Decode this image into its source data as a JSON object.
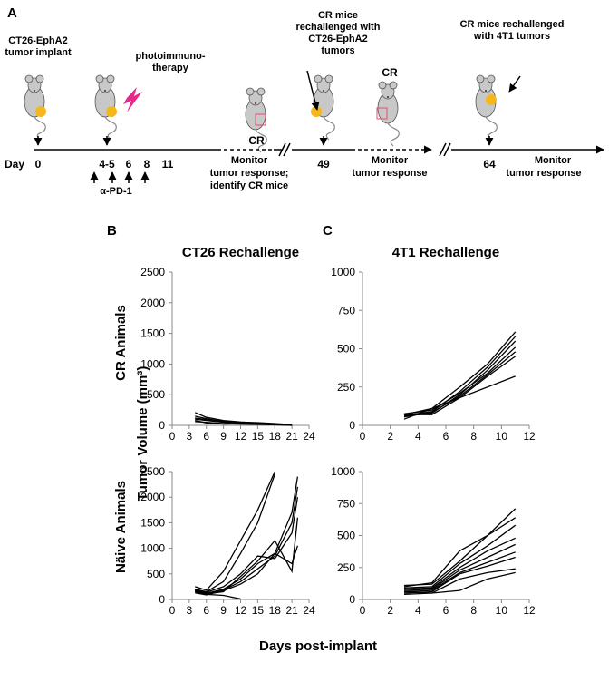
{
  "panel_a": {
    "letter": "A",
    "day_label": "Day",
    "days": {
      "d0": "0",
      "d45": "4-5",
      "d6": "6",
      "d8": "8",
      "d11": "11",
      "d49": "49",
      "d64": "64"
    },
    "labels": {
      "implant_1": "CT26-EphA2",
      "implant_2": "tumor implant",
      "pit_1": "photoimmuno-",
      "pit_2": "therapy",
      "cr_1": "CR",
      "rech1_1": "CR mice",
      "rech1_2": "rechallenged with",
      "rech1_3": "CT26-EphA2",
      "rech1_4": "tumors",
      "cr_2": "CR",
      "rech2_1": "CR mice rechallenged",
      "rech2_2": "with 4T1 tumors",
      "pd1": "α-PD-1",
      "mon1_1": "Monitor",
      "mon1_2": "tumor response;",
      "mon1_3": "identify CR mice",
      "mon2_1": "Monitor",
      "mon2_2": "tumor response",
      "mon3_1": "Monitor",
      "mon3_2": "tumor response"
    },
    "colors": {
      "tumor": "#f5b81c",
      "lightning": "#e8298a",
      "mouse": "#c8c8c8",
      "cr_box": "#e05070"
    }
  },
  "panel_b_letter": "B",
  "panel_c_letter": "C",
  "shared_ylabel": "Tumor Volume (mm³)",
  "shared_xlabel": "Days post-implant",
  "row_labels": {
    "top": "CR Animals",
    "bottom": "Näive Animals"
  },
  "chart_data": [
    {
      "id": "b_cr",
      "type": "line",
      "title": "CT26 Rechallenge",
      "xlim": [
        0,
        24
      ],
      "ylim": [
        0,
        2500
      ],
      "xticks": [
        "0",
        "3",
        "6",
        "9",
        "12",
        "15",
        "18",
        "21",
        "24"
      ],
      "yticks": [
        "0",
        "500",
        "1000",
        "1500",
        "2000",
        "2500"
      ],
      "series": [
        {
          "x": [
            4,
            6,
            9,
            12,
            15,
            18,
            21
          ],
          "y": [
            210,
            130,
            80,
            55,
            40,
            20,
            5
          ]
        },
        {
          "x": [
            4,
            6,
            9,
            12,
            15,
            18,
            21
          ],
          "y": [
            150,
            110,
            60,
            50,
            45,
            30,
            10
          ]
        },
        {
          "x": [
            4,
            6,
            9,
            12,
            15,
            18,
            21
          ],
          "y": [
            120,
            95,
            70,
            40,
            35,
            15,
            0
          ]
        },
        {
          "x": [
            4,
            6,
            9,
            12,
            15,
            18,
            21
          ],
          "y": [
            100,
            80,
            50,
            35,
            30,
            20,
            5
          ]
        },
        {
          "x": [
            4,
            6,
            9,
            12,
            15,
            18,
            21
          ],
          "y": [
            60,
            50,
            30,
            20,
            15,
            10,
            0
          ]
        },
        {
          "x": [
            4,
            6,
            9,
            12,
            15,
            18,
            21
          ],
          "y": [
            80,
            40,
            20,
            25,
            20,
            10,
            5
          ]
        }
      ]
    },
    {
      "id": "b_naive",
      "type": "line",
      "title": "",
      "xlim": [
        0,
        24
      ],
      "ylim": [
        0,
        2500
      ],
      "xticks": [
        "0",
        "3",
        "6",
        "9",
        "12",
        "15",
        "18",
        "21",
        "24"
      ],
      "yticks": [
        "0",
        "500",
        "1000",
        "1500",
        "2000",
        "2500"
      ],
      "series": [
        {
          "x": [
            4,
            6,
            9,
            12,
            15,
            18
          ],
          "y": [
            250,
            180,
            550,
            1150,
            1750,
            2500
          ]
        },
        {
          "x": [
            4,
            6,
            9,
            12,
            15,
            18
          ],
          "y": [
            200,
            150,
            350,
            900,
            1500,
            2450
          ]
        },
        {
          "x": [
            4,
            6,
            9,
            12,
            15,
            18,
            21,
            22
          ],
          "y": [
            180,
            120,
            200,
            400,
            700,
            900,
            1700,
            2400
          ]
        },
        {
          "x": [
            4,
            6,
            9,
            12,
            15,
            18,
            21,
            22
          ],
          "y": [
            150,
            100,
            180,
            350,
            600,
            850,
            1500,
            2200
          ]
        },
        {
          "x": [
            4,
            6,
            9,
            12,
            15,
            18,
            21,
            22
          ],
          "y": [
            170,
            140,
            250,
            500,
            850,
            800,
            1300,
            2000
          ]
        },
        {
          "x": [
            4,
            6,
            9,
            12,
            15,
            18,
            21,
            22
          ],
          "y": [
            160,
            110,
            150,
            450,
            750,
            1150,
            550,
            1600
          ]
        },
        {
          "x": [
            4,
            6,
            9,
            12,
            15,
            18,
            21,
            22
          ],
          "y": [
            130,
            90,
            170,
            300,
            500,
            900,
            700,
            1050
          ]
        },
        {
          "x": [
            4,
            6,
            9,
            12
          ],
          "y": [
            190,
            100,
            80,
            10
          ]
        }
      ]
    },
    {
      "id": "c_cr",
      "type": "line",
      "title": "4T1 Rechallenge",
      "xlim": [
        0,
        12
      ],
      "ylim": [
        0,
        1000
      ],
      "xticks": [
        "0",
        "2",
        "4",
        "6",
        "8",
        "10",
        "12"
      ],
      "yticks": [
        "0",
        "250",
        "500",
        "750",
        "1000"
      ],
      "series": [
        {
          "x": [
            3,
            5,
            7,
            9,
            11
          ],
          "y": [
            70,
            110,
            250,
            400,
            610
          ]
        },
        {
          "x": [
            3,
            5,
            7,
            9,
            11
          ],
          "y": [
            65,
            90,
            220,
            380,
            580
          ]
        },
        {
          "x": [
            3,
            5,
            7,
            9,
            11
          ],
          "y": [
            60,
            80,
            200,
            360,
            550
          ]
        },
        {
          "x": [
            3,
            5,
            7,
            9,
            11
          ],
          "y": [
            75,
            100,
            210,
            340,
            510
          ]
        },
        {
          "x": [
            3,
            5,
            7,
            9,
            11
          ],
          "y": [
            55,
            85,
            190,
            330,
            480
          ]
        },
        {
          "x": [
            3,
            5,
            7,
            9,
            11
          ],
          "y": [
            70,
            70,
            180,
            320,
            450
          ]
        },
        {
          "x": [
            3,
            11
          ],
          "y": [
            40,
            320
          ]
        }
      ]
    },
    {
      "id": "c_naive",
      "type": "line",
      "title": "",
      "xlim": [
        0,
        12
      ],
      "ylim": [
        0,
        1000
      ],
      "xticks": [
        "0",
        "2",
        "4",
        "6",
        "8",
        "10",
        "12"
      ],
      "yticks": [
        "0",
        "250",
        "500",
        "750",
        "1000"
      ],
      "series": [
        {
          "x": [
            3,
            5,
            7,
            9,
            11
          ],
          "y": [
            110,
            120,
            300,
            500,
            710
          ]
        },
        {
          "x": [
            3,
            5,
            7,
            9,
            11
          ],
          "y": [
            100,
            130,
            380,
            500,
            640
          ]
        },
        {
          "x": [
            3,
            5,
            7,
            9,
            11
          ],
          "y": [
            90,
            100,
            280,
            420,
            580
          ]
        },
        {
          "x": [
            3,
            5,
            7,
            9,
            11
          ],
          "y": [
            80,
            90,
            250,
            380,
            480
          ]
        },
        {
          "x": [
            3,
            5,
            7,
            9,
            11
          ],
          "y": [
            70,
            80,
            230,
            330,
            430
          ]
        },
        {
          "x": [
            3,
            5,
            7,
            9,
            11
          ],
          "y": [
            60,
            70,
            210,
            290,
            370
          ]
        },
        {
          "x": [
            3,
            5,
            7,
            9,
            11
          ],
          "y": [
            50,
            60,
            200,
            260,
            330
          ]
        },
        {
          "x": [
            3,
            5,
            7,
            9,
            11
          ],
          "y": [
            60,
            50,
            160,
            210,
            240
          ]
        },
        {
          "x": [
            3,
            5,
            7,
            9,
            11
          ],
          "y": [
            40,
            50,
            70,
            160,
            210
          ]
        }
      ]
    }
  ]
}
